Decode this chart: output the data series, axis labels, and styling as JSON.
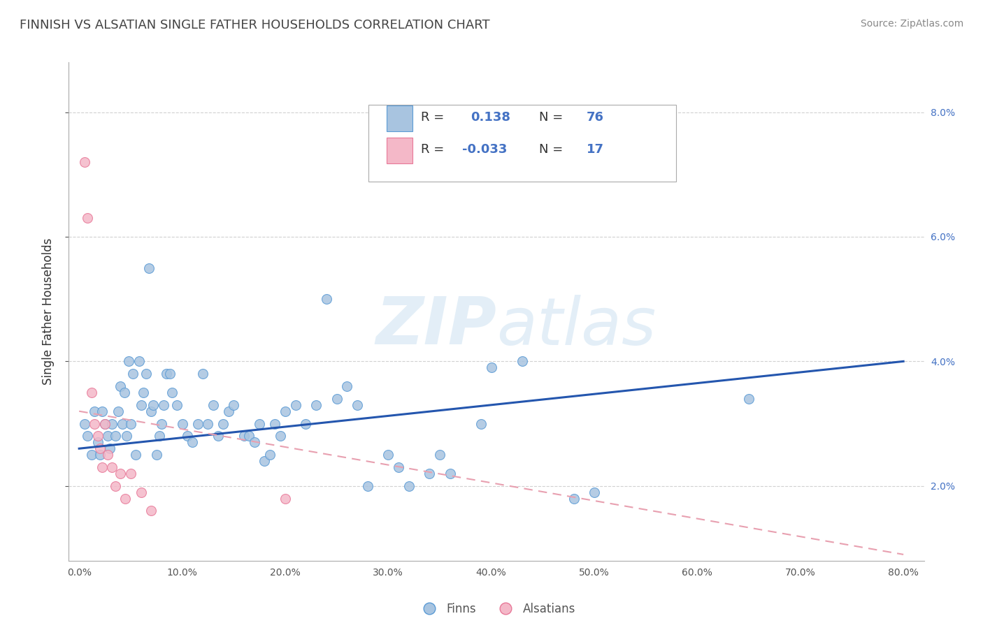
{
  "title": "FINNISH VS ALSATIAN SINGLE FATHER HOUSEHOLDS CORRELATION CHART",
  "source": "Source: ZipAtlas.com",
  "ylabel": "Single Father Households",
  "finn_r": "0.138",
  "finn_n": "76",
  "als_r": "-0.033",
  "als_n": "17",
  "xlim": [
    -0.01,
    0.82
  ],
  "ylim": [
    0.008,
    0.088
  ],
  "yticks": [
    0.02,
    0.04,
    0.06,
    0.08
  ],
  "xticks": [
    0.0,
    0.1,
    0.2,
    0.3,
    0.4,
    0.5,
    0.6,
    0.7,
    0.8
  ],
  "finn_color": "#a8c4e0",
  "finn_edge_color": "#5b9bd5",
  "als_color": "#f4b8c8",
  "als_edge_color": "#e87898",
  "finn_line_color": "#2456ae",
  "als_line_color": "#e8a0b0",
  "background_color": "#ffffff",
  "grid_color": "#cccccc",
  "title_color": "#333333",
  "label_color": "#4472c4",
  "finn_x": [
    0.005,
    0.008,
    0.012,
    0.015,
    0.018,
    0.02,
    0.022,
    0.025,
    0.028,
    0.03,
    0.032,
    0.035,
    0.038,
    0.04,
    0.042,
    0.044,
    0.046,
    0.048,
    0.05,
    0.052,
    0.055,
    0.058,
    0.06,
    0.062,
    0.065,
    0.068,
    0.07,
    0.072,
    0.075,
    0.078,
    0.08,
    0.082,
    0.085,
    0.088,
    0.09,
    0.095,
    0.1,
    0.105,
    0.11,
    0.115,
    0.12,
    0.125,
    0.13,
    0.135,
    0.14,
    0.145,
    0.15,
    0.16,
    0.165,
    0.17,
    0.175,
    0.18,
    0.185,
    0.19,
    0.195,
    0.2,
    0.21,
    0.22,
    0.23,
    0.24,
    0.25,
    0.26,
    0.27,
    0.28,
    0.3,
    0.31,
    0.32,
    0.34,
    0.35,
    0.36,
    0.39,
    0.4,
    0.43,
    0.48,
    0.5,
    0.65
  ],
  "finn_y": [
    0.03,
    0.028,
    0.025,
    0.032,
    0.027,
    0.025,
    0.032,
    0.03,
    0.028,
    0.026,
    0.03,
    0.028,
    0.032,
    0.036,
    0.03,
    0.035,
    0.028,
    0.04,
    0.03,
    0.038,
    0.025,
    0.04,
    0.033,
    0.035,
    0.038,
    0.055,
    0.032,
    0.033,
    0.025,
    0.028,
    0.03,
    0.033,
    0.038,
    0.038,
    0.035,
    0.033,
    0.03,
    0.028,
    0.027,
    0.03,
    0.038,
    0.03,
    0.033,
    0.028,
    0.03,
    0.032,
    0.033,
    0.028,
    0.028,
    0.027,
    0.03,
    0.024,
    0.025,
    0.03,
    0.028,
    0.032,
    0.033,
    0.03,
    0.033,
    0.05,
    0.034,
    0.036,
    0.033,
    0.02,
    0.025,
    0.023,
    0.02,
    0.022,
    0.025,
    0.022,
    0.03,
    0.039,
    0.04,
    0.018,
    0.019,
    0.034
  ],
  "als_x": [
    0.005,
    0.008,
    0.012,
    0.015,
    0.018,
    0.02,
    0.022,
    0.025,
    0.028,
    0.032,
    0.035,
    0.04,
    0.045,
    0.05,
    0.06,
    0.07,
    0.2
  ],
  "als_y": [
    0.072,
    0.063,
    0.035,
    0.03,
    0.028,
    0.026,
    0.023,
    0.03,
    0.025,
    0.023,
    0.02,
    0.022,
    0.018,
    0.022,
    0.019,
    0.016,
    0.018
  ],
  "finn_trend_x": [
    0.0,
    0.8
  ],
  "finn_trend_y": [
    0.026,
    0.04
  ],
  "als_trend_x": [
    0.0,
    0.8
  ],
  "als_trend_y": [
    0.032,
    0.009
  ]
}
